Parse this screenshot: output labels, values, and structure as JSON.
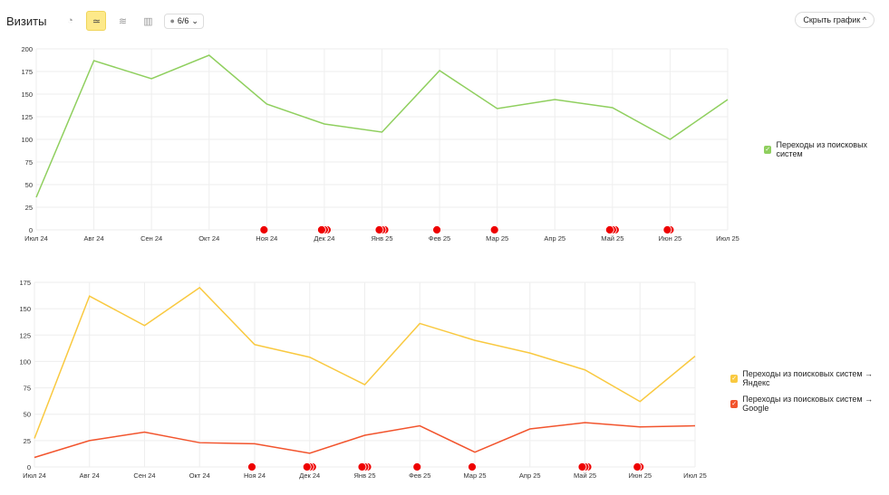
{
  "header": {
    "title": "Визиты",
    "counter": "6/6",
    "hide_label": "Скрыть график"
  },
  "icons": [
    "pie-chart-icon",
    "line-chart-icon",
    "stacked-area-icon",
    "bar-chart-icon"
  ],
  "chart_data": [
    {
      "type": "line",
      "categories": [
        "Июл 24",
        "Авг 24",
        "Сен 24",
        "Окт 24",
        "Ноя 24",
        "Дек 24",
        "Янв 25",
        "Фев 25",
        "Мар 25",
        "Апр 25",
        "Май 25",
        "Июн 25",
        "Июл 25"
      ],
      "yticks": [
        0,
        25,
        50,
        75,
        100,
        125,
        150,
        175,
        200
      ],
      "ylim": [
        0,
        200
      ],
      "series": [
        {
          "name": "Переходы из поисковых систем",
          "color": "#8fcf5e",
          "values": [
            36,
            187,
            167,
            193,
            139,
            117,
            108,
            176,
            134,
            144,
            135,
            100,
            144
          ]
        }
      ],
      "annotations": [
        0,
        0,
        0,
        0,
        1,
        3,
        3,
        1,
        1,
        0,
        3,
        2,
        0
      ]
    },
    {
      "type": "line",
      "categories": [
        "Июл 24",
        "Авг 24",
        "Сен 24",
        "Окт 24",
        "Ноя 24",
        "Дек 24",
        "Янв 25",
        "Фев 25",
        "Мар 25",
        "Апр 25",
        "Май 25",
        "Июн 25",
        "Июл 25"
      ],
      "yticks": [
        0,
        25,
        50,
        75,
        100,
        125,
        150,
        175
      ],
      "ylim": [
        0,
        175
      ],
      "series": [
        {
          "name": "Переходы из поисковых систем → Яндекс",
          "color": "#f9c940",
          "values": [
            27,
            162,
            134,
            170,
            116,
            104,
            78,
            136,
            120,
            108,
            92,
            62,
            105
          ]
        },
        {
          "name": "Переходы из поисковых систем → Google",
          "color": "#f2542d",
          "values": [
            9,
            25,
            33,
            23,
            22,
            13,
            30,
            39,
            14,
            36,
            42,
            38,
            39
          ]
        }
      ],
      "annotations": [
        0,
        0,
        0,
        0,
        1,
        3,
        3,
        1,
        1,
        0,
        3,
        2,
        0
      ]
    }
  ]
}
